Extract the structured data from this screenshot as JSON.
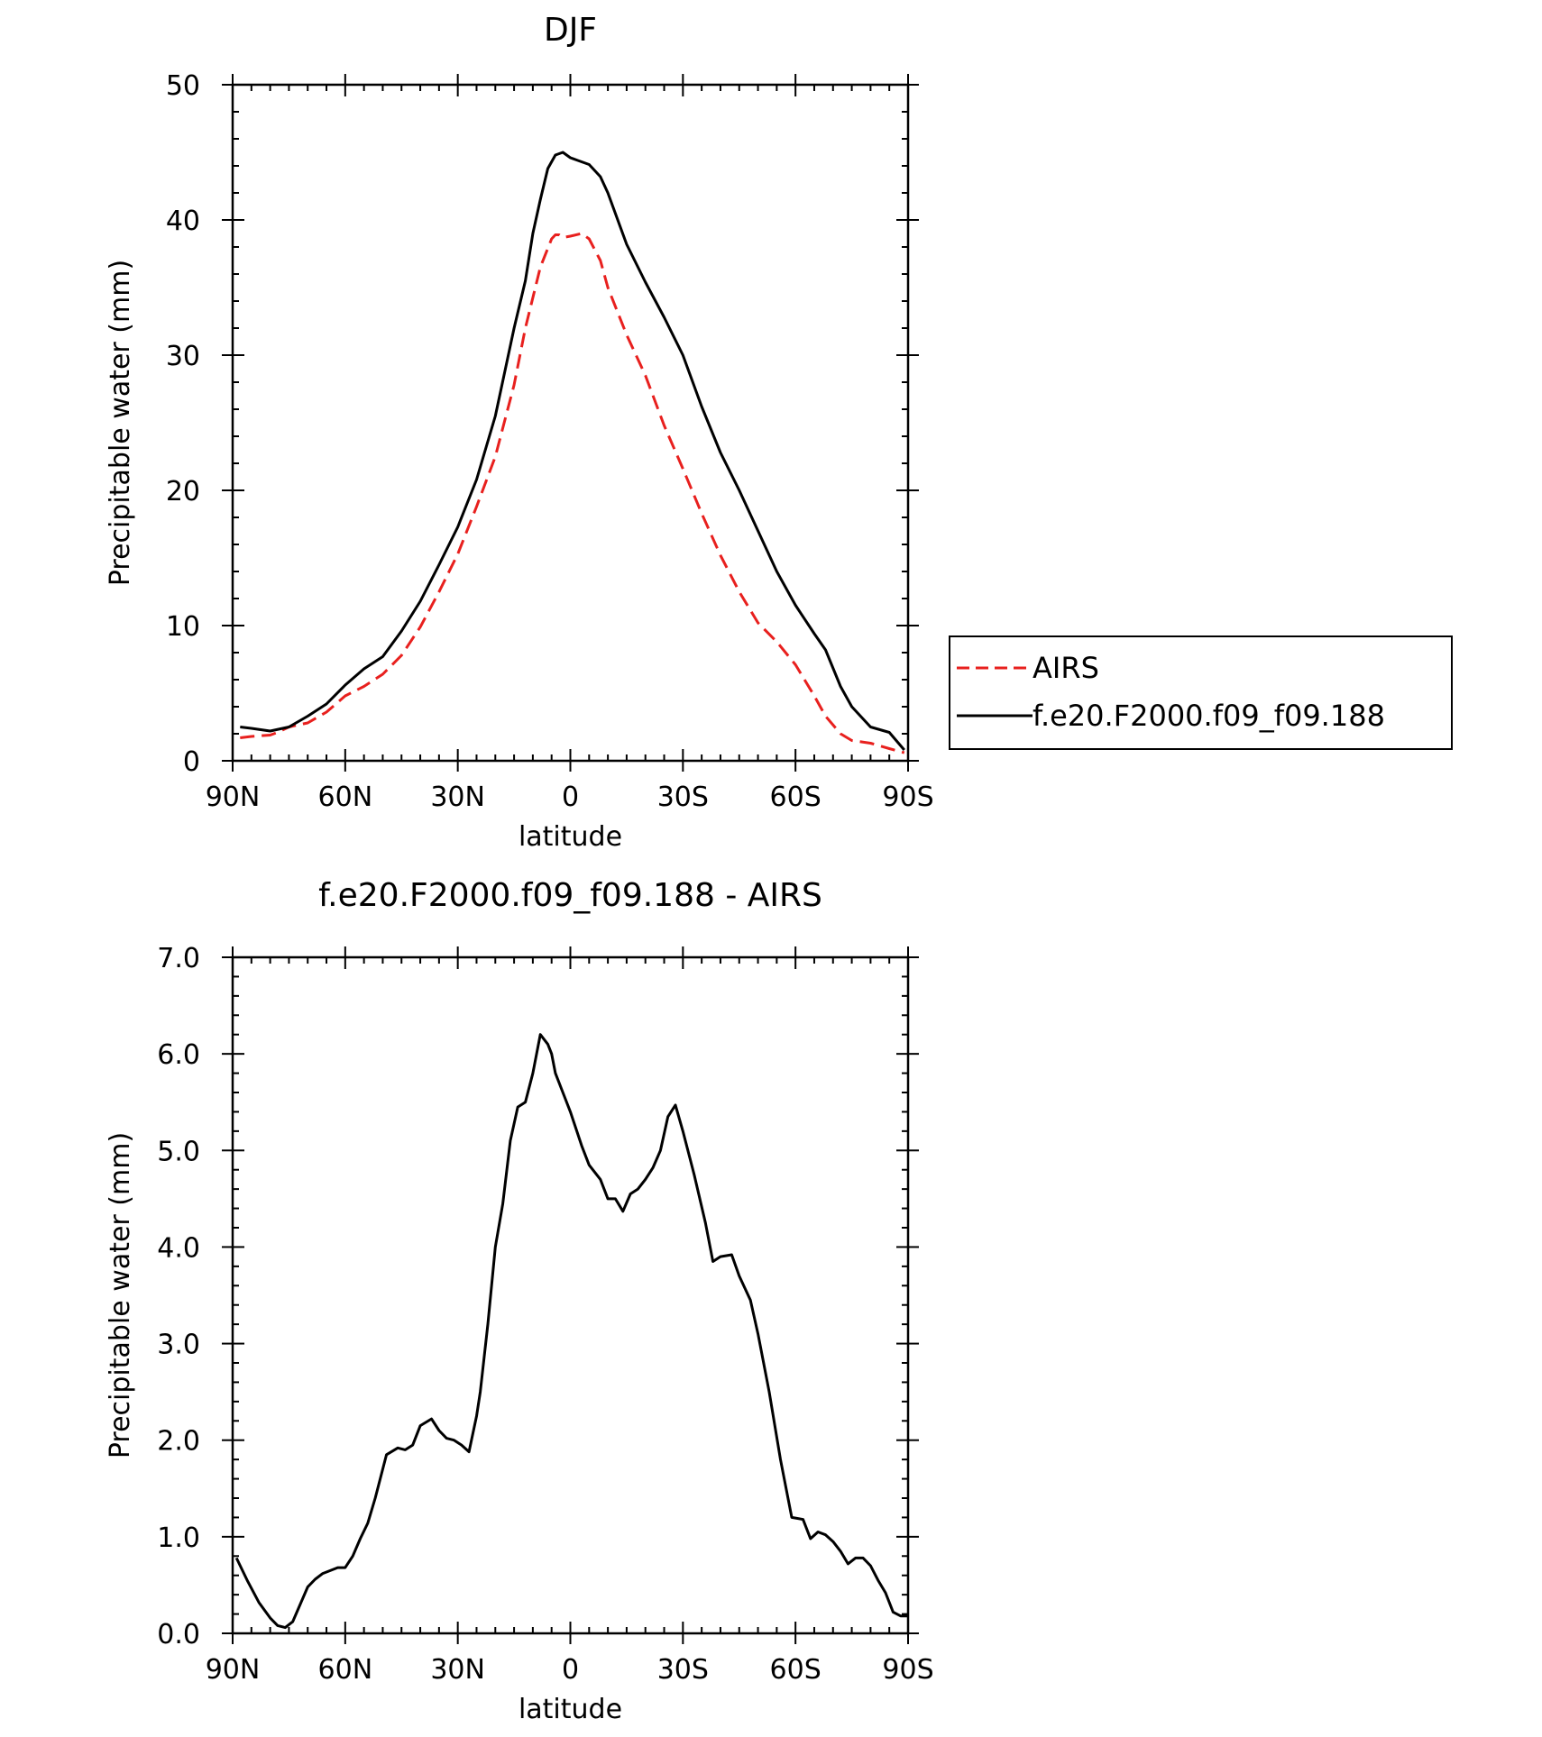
{
  "chart_data": [
    {
      "type": "line",
      "title": "DJF",
      "xlabel": "latitude",
      "ylabel": "Precipitable water (mm)",
      "x_unit_note": "latitude, north positive",
      "xlim": [
        90,
        -90
      ],
      "ylim": [
        0,
        50
      ],
      "x_ticks": [
        {
          "value": 90,
          "label": "90N"
        },
        {
          "value": 60,
          "label": "60N"
        },
        {
          "value": 30,
          "label": "30N"
        },
        {
          "value": 0,
          "label": "0"
        },
        {
          "value": -30,
          "label": "30S"
        },
        {
          "value": -60,
          "label": "60S"
        },
        {
          "value": -90,
          "label": "90S"
        }
      ],
      "y_ticks": [
        {
          "value": 0,
          "label": "0"
        },
        {
          "value": 10,
          "label": "10"
        },
        {
          "value": 20,
          "label": "20"
        },
        {
          "value": 30,
          "label": "30"
        },
        {
          "value": 40,
          "label": "40"
        },
        {
          "value": 50,
          "label": "50"
        }
      ],
      "grid": false,
      "legend_position": "right",
      "series": [
        {
          "name": "AIRS",
          "style": "dashed",
          "color": "#e8201e",
          "x": [
            88,
            85,
            80,
            78,
            75,
            70,
            65,
            60,
            55,
            50,
            45,
            40,
            35,
            30,
            25,
            20,
            15,
            12,
            8,
            5,
            4,
            3,
            2,
            0,
            -3,
            -5,
            -8,
            -10,
            -15,
            -20,
            -25,
            -30,
            -35,
            -40,
            -45,
            -50,
            -55,
            -60,
            -65,
            -68,
            -72,
            -75,
            -80,
            -85,
            -89
          ],
          "y": [
            1.7,
            1.8,
            1.9,
            2.1,
            2.5,
            2.8,
            3.6,
            4.8,
            5.5,
            6.4,
            7.8,
            9.9,
            12.5,
            15.3,
            18.8,
            22.5,
            27.8,
            32.0,
            36.5,
            38.6,
            38.9,
            38.9,
            38.7,
            38.8,
            39.0,
            38.6,
            37.0,
            35.0,
            31.5,
            28.5,
            24.8,
            21.6,
            18.3,
            15.2,
            12.5,
            10.2,
            8.8,
            7.1,
            4.8,
            3.3,
            2.0,
            1.5,
            1.3,
            0.9,
            0.6
          ]
        },
        {
          "name": "f.e20.F2000.f09_f09.188",
          "style": "solid",
          "color": "#000000",
          "x": [
            88,
            85,
            80,
            75,
            70,
            65,
            60,
            55,
            50,
            45,
            40,
            35,
            30,
            25,
            20,
            15,
            12,
            10,
            8,
            6,
            4,
            2,
            0,
            -2,
            -5,
            -8,
            -10,
            -15,
            -20,
            -25,
            -30,
            -35,
            -40,
            -45,
            -50,
            -55,
            -60,
            -65,
            -68,
            -72,
            -75,
            -80,
            -85,
            -89
          ],
          "y": [
            2.5,
            2.4,
            2.2,
            2.5,
            3.3,
            4.2,
            5.6,
            6.8,
            7.7,
            9.6,
            11.8,
            14.5,
            17.3,
            20.8,
            25.5,
            32.0,
            35.5,
            39.0,
            41.5,
            43.8,
            44.8,
            45.0,
            44.6,
            44.4,
            44.1,
            43.2,
            42.0,
            38.2,
            35.4,
            32.8,
            30.0,
            26.2,
            22.8,
            20.0,
            17.0,
            14.0,
            11.5,
            9.4,
            8.2,
            5.5,
            4.0,
            2.5,
            2.1,
            0.8
          ]
        }
      ]
    },
    {
      "type": "line",
      "title": "f.e20.F2000.f09_f09.188 - AIRS",
      "xlabel": "latitude",
      "ylabel": "Precipitable water (mm)",
      "xlim": [
        90,
        -90
      ],
      "ylim": [
        0,
        7
      ],
      "x_ticks": [
        {
          "value": 90,
          "label": "90N"
        },
        {
          "value": 60,
          "label": "60N"
        },
        {
          "value": 30,
          "label": "30N"
        },
        {
          "value": 0,
          "label": "0"
        },
        {
          "value": -30,
          "label": "30S"
        },
        {
          "value": -60,
          "label": "60S"
        },
        {
          "value": -90,
          "label": "90S"
        }
      ],
      "y_ticks": [
        {
          "value": 0,
          "label": "0.0"
        },
        {
          "value": 1,
          "label": "1.0"
        },
        {
          "value": 2,
          "label": "2.0"
        },
        {
          "value": 3,
          "label": "3.0"
        },
        {
          "value": 4,
          "label": "4.0"
        },
        {
          "value": 5,
          "label": "5.0"
        },
        {
          "value": 6,
          "label": "6.0"
        },
        {
          "value": 7,
          "label": "7.0"
        }
      ],
      "grid": false,
      "series": [
        {
          "style": "solid",
          "color": "#000000",
          "x": [
            89,
            86,
            83,
            80,
            78,
            76,
            74,
            72,
            70,
            68,
            66,
            64,
            62,
            60,
            58,
            56,
            54,
            52,
            49,
            46,
            44,
            42,
            40,
            37,
            35,
            33,
            31,
            29,
            27,
            25,
            24,
            22,
            20,
            18,
            16,
            14,
            12,
            10,
            8,
            6,
            5,
            4,
            2,
            0,
            -3,
            -5,
            -8,
            -10,
            -12,
            -14,
            -16,
            -18,
            -20,
            -22,
            -24,
            -26,
            -28,
            -30,
            -33,
            -36,
            -38,
            -40,
            -43,
            -45,
            -48,
            -50,
            -53,
            -56,
            -59,
            -62,
            -64,
            -66,
            -68,
            -70,
            -72,
            -74,
            -76,
            -78,
            -80,
            -82,
            -84,
            -86,
            -88,
            -90
          ],
          "y": [
            0.78,
            0.54,
            0.32,
            0.16,
            0.08,
            0.06,
            0.12,
            0.3,
            0.48,
            0.56,
            0.62,
            0.65,
            0.68,
            0.68,
            0.8,
            0.98,
            1.14,
            1.4,
            1.85,
            1.92,
            1.9,
            1.95,
            2.15,
            2.22,
            2.1,
            2.02,
            2.0,
            1.95,
            1.88,
            2.25,
            2.5,
            3.2,
            4.0,
            4.45,
            5.1,
            5.45,
            5.5,
            5.8,
            6.2,
            6.1,
            6.0,
            5.8,
            5.6,
            5.4,
            5.05,
            4.85,
            4.7,
            4.5,
            4.5,
            4.37,
            4.55,
            4.6,
            4.7,
            4.82,
            5.0,
            5.35,
            5.47,
            5.2,
            4.75,
            4.25,
            3.85,
            3.9,
            3.92,
            3.7,
            3.45,
            3.1,
            2.5,
            1.8,
            1.2,
            1.18,
            0.98,
            1.05,
            1.02,
            0.95,
            0.85,
            0.72,
            0.78,
            0.78,
            0.7,
            0.55,
            0.42,
            0.22,
            0.18,
            0.18
          ]
        }
      ]
    }
  ]
}
